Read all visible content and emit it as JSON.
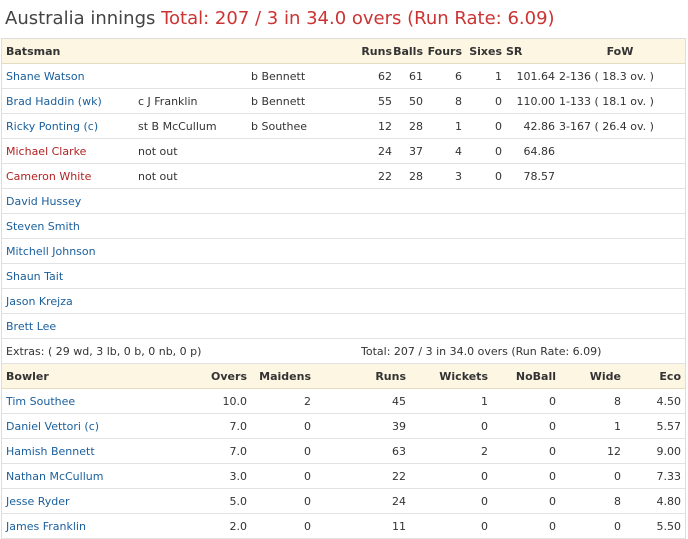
{
  "header": {
    "team_label": "Australia innings ",
    "total_summary": "Total: 207 / 3 in 34.0 overs (Run Rate: 6.09)"
  },
  "batting": {
    "columns": [
      "Batsman",
      "Runs",
      "Balls",
      "Fours",
      "Sixes",
      "SR",
      "FoW"
    ],
    "rows": [
      {
        "name": "Shane Watson",
        "catch": "",
        "bowled": "b Bennett",
        "runs": "62",
        "balls": "61",
        "fours": "6",
        "sixes": "1",
        "sr": "101.64",
        "fow": "2-136 ( 18.3 ov. )",
        "not_out": false
      },
      {
        "name": "Brad Haddin (wk)",
        "catch": "c J Franklin",
        "bowled": "b Bennett",
        "runs": "55",
        "balls": "50",
        "fours": "8",
        "sixes": "0",
        "sr": "110.00",
        "fow": "1-133 ( 18.1 ov. )",
        "not_out": false
      },
      {
        "name": "Ricky Ponting (c)",
        "catch": "st B McCullum",
        "bowled": "b Southee",
        "runs": "12",
        "balls": "28",
        "fours": "1",
        "sixes": "0",
        "sr": "42.86",
        "fow": "3-167 ( 26.4 ov. )",
        "not_out": false
      },
      {
        "name": "Michael Clarke",
        "catch": "not out",
        "bowled": "",
        "runs": "24",
        "balls": "37",
        "fours": "4",
        "sixes": "0",
        "sr": "64.86",
        "fow": "",
        "not_out": true
      },
      {
        "name": "Cameron White",
        "catch": "not out",
        "bowled": "",
        "runs": "22",
        "balls": "28",
        "fours": "3",
        "sixes": "0",
        "sr": "78.57",
        "fow": "",
        "not_out": true
      }
    ],
    "did_not_bat": [
      "David Hussey",
      "Steven Smith",
      "Mitchell Johnson",
      "Shaun Tait",
      "Jason Krejza",
      "Brett Lee"
    ],
    "extras": "Extras: ( 29 wd, 3 lb, 0 b, 0 nb, 0 p)",
    "total": "Total: 207 / 3 in 34.0 overs (Run Rate: 6.09)"
  },
  "bowling": {
    "columns": [
      "Bowler",
      "Overs",
      "Maidens",
      "Runs",
      "Wickets",
      "NoBall",
      "Wide",
      "Eco"
    ],
    "rows": [
      {
        "name": "Tim Southee",
        "overs": "10.0",
        "maidens": "2",
        "runs": "45",
        "wickets": "1",
        "noball": "0",
        "wide": "8",
        "eco": "4.50"
      },
      {
        "name": "Daniel Vettori (c)",
        "overs": "7.0",
        "maidens": "0",
        "runs": "39",
        "wickets": "0",
        "noball": "0",
        "wide": "1",
        "eco": "5.57"
      },
      {
        "name": "Hamish Bennett",
        "overs": "7.0",
        "maidens": "0",
        "runs": "63",
        "wickets": "2",
        "noball": "0",
        "wide": "12",
        "eco": "9.00"
      },
      {
        "name": "Nathan McCullum",
        "overs": "3.0",
        "maidens": "0",
        "runs": "22",
        "wickets": "0",
        "noball": "0",
        "wide": "0",
        "eco": "7.33"
      },
      {
        "name": "Jesse Ryder",
        "overs": "5.0",
        "maidens": "0",
        "runs": "24",
        "wickets": "0",
        "noball": "0",
        "wide": "8",
        "eco": "4.80"
      },
      {
        "name": "James Franklin",
        "overs": "2.0",
        "maidens": "0",
        "runs": "11",
        "wickets": "0",
        "noball": "0",
        "wide": "0",
        "eco": "5.50"
      }
    ]
  },
  "colors": {
    "link": "#1a5f9c",
    "not_out": "#b22222",
    "total": "#cc3333",
    "header_bg": "#fdf6e3"
  }
}
